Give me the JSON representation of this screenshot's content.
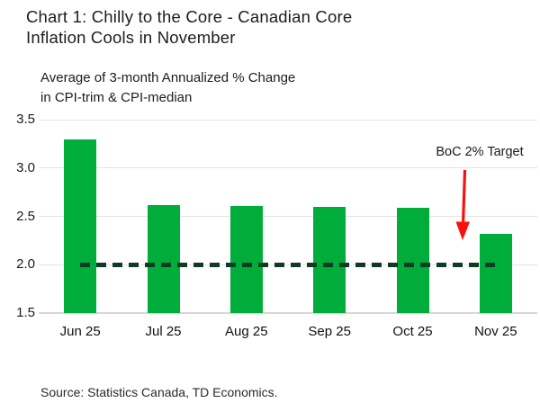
{
  "header": {
    "title_lines": [
      "Chart 1: Chilly to the Core - Canadian Core",
      "Inflation Cools in November"
    ],
    "subtitle_lines": [
      "Average of 3-month Annualized % Change",
      "in CPI-trim & CPI-median"
    ]
  },
  "annotation": {
    "label": "BoC 2% Target"
  },
  "source": "Source: Statistics Canada, TD Economics.",
  "colors": {
    "bar": "#00ad3a",
    "target_line": "#0d3b26",
    "arrow": "#f7100c",
    "gridline": "#e3e3e3",
    "axis": "#d7d7d7",
    "text": "#1a1a1a"
  },
  "chart_data": {
    "type": "bar",
    "title": "Chart 1: Chilly to the Core - Canadian Core Inflation Cools in November",
    "subtitle": "Average of 3-month Annualized % Change in CPI-trim & CPI-median",
    "categories": [
      "Jun 25",
      "Jul 25",
      "Aug 25",
      "Sep 25",
      "Oct 25",
      "Nov 25"
    ],
    "values": [
      3.3,
      2.62,
      2.61,
      2.6,
      2.59,
      2.32
    ],
    "ylim": [
      1.5,
      3.5
    ],
    "yticks": [
      3.5,
      3.0,
      2.5,
      2.0,
      1.5
    ],
    "grid": true,
    "legend": "none",
    "target_line": {
      "value": 2.0,
      "label": "BoC 2% Target",
      "style": "dashed"
    },
    "source": "Source: Statistics Canada, TD Economics."
  }
}
